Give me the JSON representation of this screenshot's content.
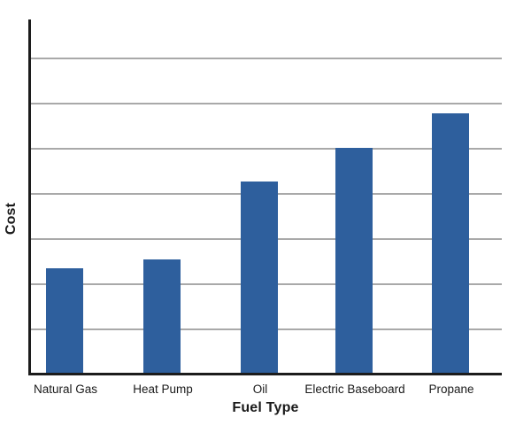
{
  "page": {
    "background": "#ffffff"
  },
  "chart_data": {
    "type": "bar",
    "title": "",
    "xlabel": "Fuel Type",
    "ylabel": "Cost",
    "categories": [
      "Natural Gas",
      "Heat Pump",
      "Oil",
      "Electric Baseboard",
      "Propane"
    ],
    "values": [
      2.31,
      2.51,
      4.24,
      4.98,
      5.75
    ],
    "units_note": "y-axis has no numeric tick labels; values expressed in gridline units (1 unit = one gridline spacing)",
    "ylim": [
      0,
      7.8
    ],
    "gridline_interval": 1,
    "gridline_count": 7,
    "legend_position": "none",
    "grid": "horizontal",
    "colors": {
      "bar": "#2e5f9d",
      "gridline": "#a9a9a9",
      "axis": "#1c1c1c",
      "text": "#1a1a1a"
    }
  }
}
